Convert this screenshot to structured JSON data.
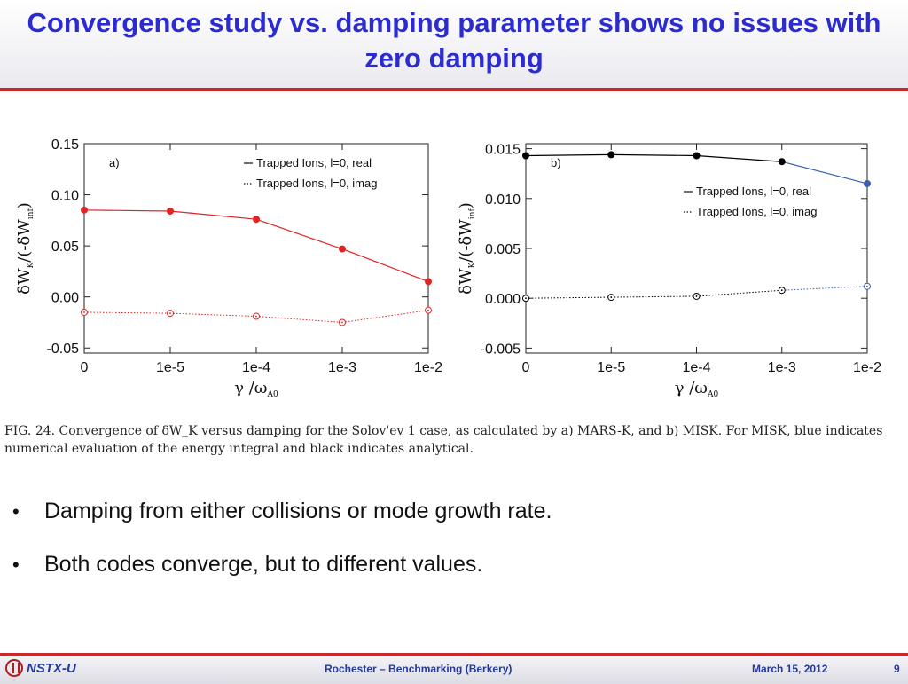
{
  "slide": {
    "title": "Convergence study vs. damping parameter shows no issues with zero damping",
    "caption": "FIG. 24. Convergence of δW_K versus damping for the Solov'ev 1 case, as calculated by a) MARS-K, and b) MISK. For MISK, blue indicates numerical evaluation of the energy integral and black indicates analytical.",
    "bullets": [
      "Damping from either collisions or mode growth rate.",
      "Both codes converge, but to different values."
    ],
    "footer": {
      "logo": "NSTX-U",
      "center": "Rochester – Benchmarking (Berkery)",
      "date": "March 15, 2012",
      "page": "9"
    }
  },
  "chart_data": [
    {
      "type": "line",
      "panel_label": "a)",
      "xlabel": "γ /ω",
      "xlabel_sub": "A0",
      "ylabel": "δW",
      "ylabel_sub": "K",
      "ylabel_mid": "/(-δW",
      "ylabel_sub2": "inf",
      "ylabel_end": ")",
      "x_categories": [
        "0",
        "1e-5",
        "1e-4",
        "1e-3",
        "1e-2"
      ],
      "ylim": [
        -0.055,
        0.15
      ],
      "yticks": [
        "0.15",
        "0.10",
        "0.05",
        "0.00",
        "-0.05"
      ],
      "ytick_values": [
        0.15,
        0.1,
        0.05,
        0.0,
        -0.05
      ],
      "grid": false,
      "legend_position": "top-right",
      "series": [
        {
          "name": "Trapped Ions, l=0, real",
          "style": "solid",
          "marker": "filled",
          "color": "#e02424",
          "values": [
            0.085,
            0.084,
            0.076,
            0.047,
            0.015
          ]
        },
        {
          "name": "Trapped Ions, l=0, imag",
          "style": "dotted",
          "marker": "open",
          "color": "#e02424",
          "values": [
            -0.015,
            -0.016,
            -0.019,
            -0.025,
            -0.013
          ]
        }
      ]
    },
    {
      "type": "line",
      "panel_label": "b)",
      "xlabel": "γ /ω",
      "xlabel_sub": "A0",
      "ylabel": "δW",
      "ylabel_sub": "K",
      "ylabel_mid": "/(-δW",
      "ylabel_sub2": "inf",
      "ylabel_end": ")",
      "x_categories": [
        "0",
        "1e-5",
        "1e-4",
        "1e-3",
        "1e-2"
      ],
      "ylim": [
        -0.0055,
        0.0155
      ],
      "yticks": [
        "0.015",
        "0.010",
        "0.005",
        "0.000",
        "-0.005"
      ],
      "ytick_values": [
        0.015,
        0.01,
        0.005,
        0.0,
        -0.005
      ],
      "grid": false,
      "legend_position": "top-right",
      "series": [
        {
          "name": "Trapped Ions, l=0, real",
          "style": "solid",
          "marker": "filled",
          "color": "#000000",
          "last_segment_color": "#3b5fb0",
          "values": [
            0.0143,
            0.0144,
            0.0143,
            0.0137,
            0.0115
          ]
        },
        {
          "name": "Trapped Ions, l=0, imag",
          "style": "dotted",
          "marker": "open",
          "color": "#000000",
          "last_segment_color": "#3b5fb0",
          "values": [
            0.0,
            0.0001,
            0.0002,
            0.0008,
            0.0012
          ]
        }
      ]
    }
  ]
}
